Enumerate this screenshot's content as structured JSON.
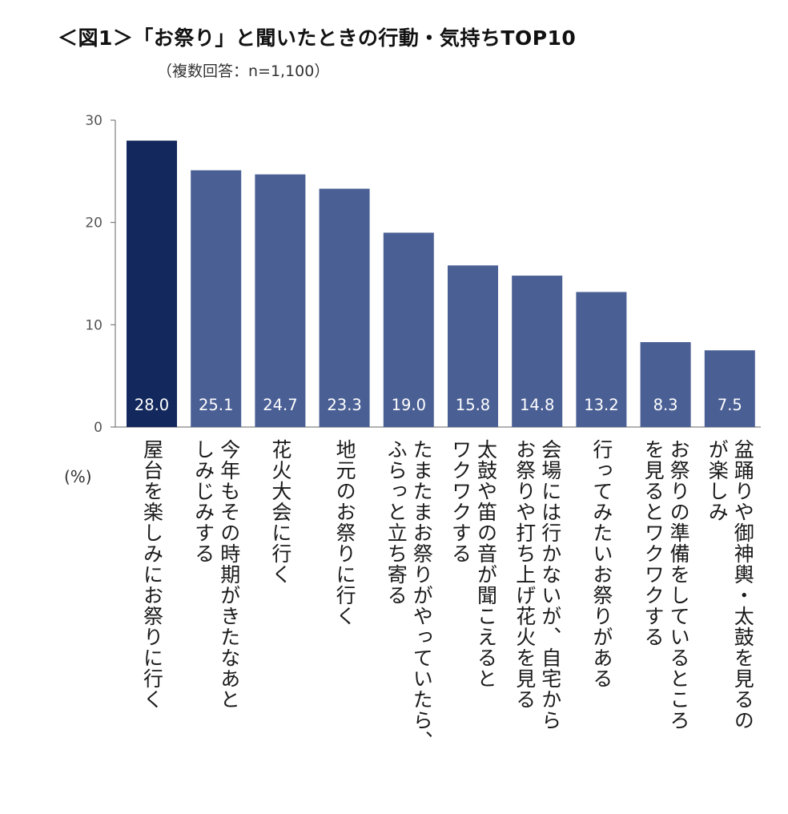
{
  "header": {
    "title": "＜図1＞「お祭り」と聞いたときの行動・気持ちTOP10",
    "subtitle": "（複数回答：n=1,100）",
    "unit": "(%)"
  },
  "colors": {
    "highlight": "#13285c",
    "bar": "#4a5f94",
    "axis": "#666666",
    "value_label": "#ffffff"
  },
  "chart_data": {
    "type": "bar",
    "title": "＜図1＞「お祭り」と聞いたときの行動・気持ちTOP10",
    "subtitle": "（複数回答：n=1,100）",
    "xlabel": "",
    "ylabel": "(%)",
    "ylim": [
      0,
      30
    ],
    "yticks": [
      0,
      10,
      20,
      30
    ],
    "grid": false,
    "categories": [
      "屋台を楽しみにお祭りに行く",
      "今年もその時期がきたなあとしみじみする",
      "花火大会に行く",
      "地元のお祭りに行く",
      "たまたまお祭りがやっていたら、ふらっと立ち寄る",
      "太鼓や笛の音が聞こえるとワクワクする",
      "会場には行かないが、自宅からお祭りや打ち上げ花火を見る",
      "行ってみたいお祭りがある",
      "お祭りの準備をしているところを見るとワクワクする",
      "盆踊りや御神輿・太鼓を見るのが楽しみ"
    ],
    "category_lines": [
      [
        "屋台を楽しみにお祭りに行く"
      ],
      [
        "今年もその時期がきたなあと",
        "しみじみする"
      ],
      [
        "花火大会に行く"
      ],
      [
        "地元のお祭りに行く"
      ],
      [
        "たまたまお祭りがやっていたら、",
        "ふらっと立ち寄る"
      ],
      [
        "太鼓や笛の音が聞こえると",
        "ワクワクする"
      ],
      [
        "会場には行かないが、自宅から",
        "お祭りや打ち上げ花火を見る"
      ],
      [
        "行ってみたいお祭りがある"
      ],
      [
        "お祭りの準備をしているところ",
        "を見るとワクワクする"
      ],
      [
        "盆踊りや御神輿・太鼓を見るの",
        "が楽しみ"
      ]
    ],
    "values": [
      28.0,
      25.1,
      24.7,
      23.3,
      19.0,
      15.8,
      14.8,
      13.2,
      8.3,
      7.5
    ],
    "value_labels": [
      "28.0",
      "25.1",
      "24.7",
      "23.3",
      "19.0",
      "15.8",
      "14.8",
      "13.2",
      "8.3",
      "7.5"
    ],
    "highlight_index": 0
  }
}
